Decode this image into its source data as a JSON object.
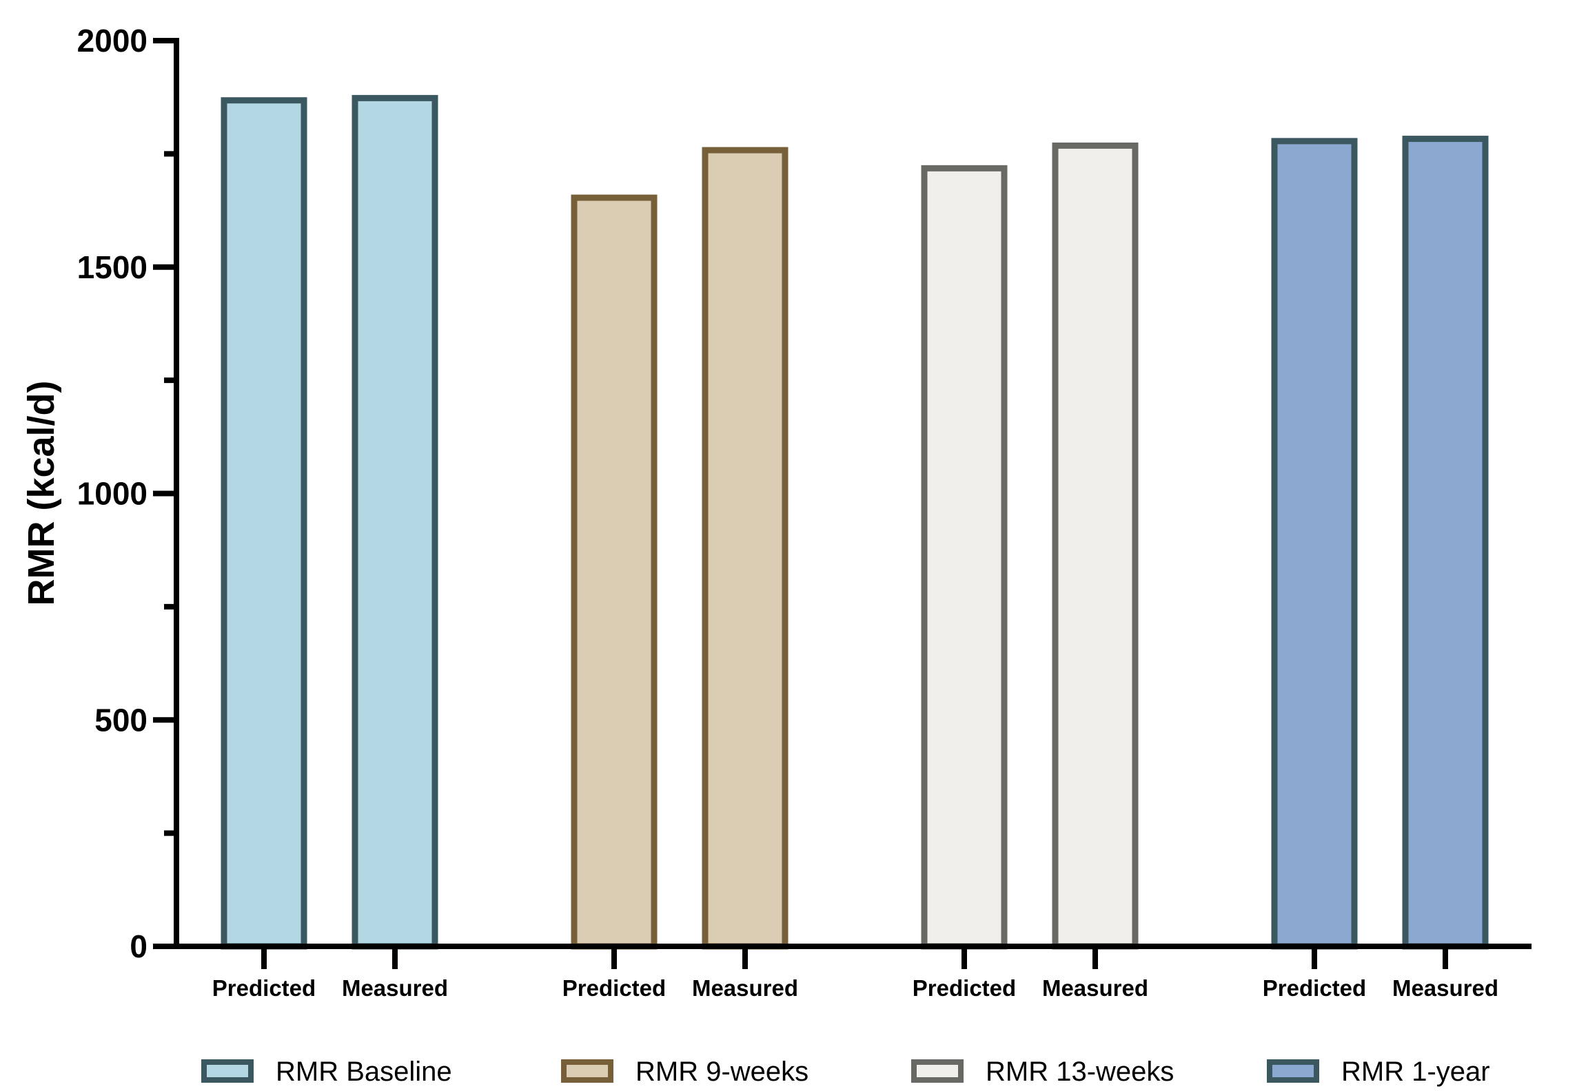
{
  "chart_data": {
    "type": "bar",
    "ylabel": "RMR (kcal/d)",
    "ylim": [
      0,
      2000
    ],
    "yticks_major": [
      0,
      500,
      1000,
      1500,
      2000
    ],
    "yticks_minor": [
      250,
      750,
      1250,
      1750
    ],
    "legend_position": "bottom",
    "grid": false,
    "groups": [
      {
        "name": "RMR Baseline",
        "fill": "#b3d8e3",
        "stroke": "#3b5760",
        "bars": [
          {
            "label": "Predicted",
            "value": 1875
          },
          {
            "label": "Measured",
            "value": 1880
          }
        ]
      },
      {
        "name": "RMR 9-weeks",
        "fill": "#dacdb3",
        "stroke": "#775f3a",
        "bars": [
          {
            "label": "Predicted",
            "value": 1660
          },
          {
            "label": "Measured",
            "value": 1765
          }
        ]
      },
      {
        "name": "RMR 13-weeks",
        "fill": "#f0efe9",
        "stroke": "#686865",
        "bars": [
          {
            "label": "Predicted",
            "value": 1725
          },
          {
            "label": "Measured",
            "value": 1775
          }
        ]
      },
      {
        "name": "RMR 1-year",
        "fill": "#8ba8d0",
        "stroke": "#3b5760",
        "bars": [
          {
            "label": "Predicted",
            "value": 1785
          },
          {
            "label": "Measured",
            "value": 1790
          }
        ]
      }
    ]
  }
}
